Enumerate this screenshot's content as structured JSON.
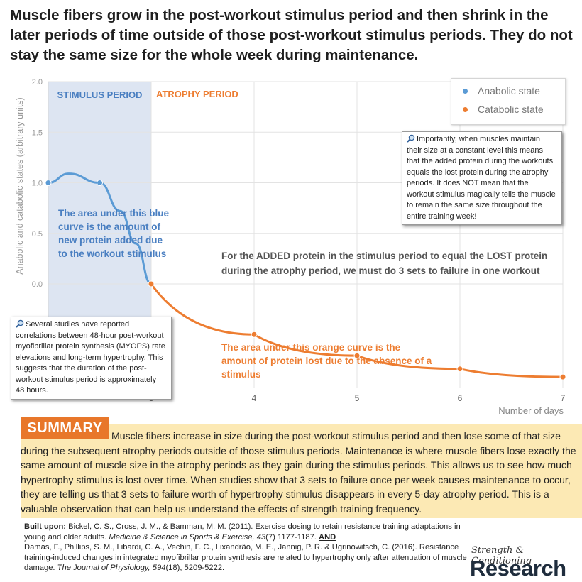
{
  "headline": "Muscle fibers grow in the post-workout stimulus period and then shrink in the later periods of time outside of those post-workout stimulus periods. They do not stay the same size for the whole week during maintenance.",
  "colors": {
    "anabolic": "#5b9bd5",
    "catabolic": "#ed7d31",
    "stimulus_fill": "#dde5f2",
    "summary_bg": "#fce9b4",
    "summary_label": "#e8772a"
  },
  "chart_data": {
    "type": "line",
    "xlabel": "Number of days",
    "ylabel": "Anabolic and catabolic states (arbitrary units)",
    "xlim": [
      2,
      7
    ],
    "ylim": [
      -1.5,
      2.0
    ],
    "x_ticks": [
      "3",
      "4",
      "5",
      "6",
      "7"
    ],
    "y_ticks": [
      "2.0",
      "1.5",
      "1.0",
      "0.5",
      "0.0"
    ],
    "grid": true,
    "legend_position": "top-right",
    "series": [
      {
        "name": "Anabolic state",
        "color": "#5b9bd5",
        "x": [
          2.0,
          2.5,
          3.0
        ],
        "y": [
          1.0,
          1.0,
          0.0
        ],
        "curve": [
          [
            2.0,
            1.0
          ],
          [
            2.2,
            1.09
          ],
          [
            2.5,
            1.0
          ],
          [
            2.7,
            0.72
          ],
          [
            2.85,
            0.4
          ],
          [
            3.0,
            0.0
          ]
        ]
      },
      {
        "name": "Catabolic state",
        "color": "#ed7d31",
        "x": [
          3,
          4,
          5,
          6,
          7
        ],
        "y": [
          0.0,
          -0.5,
          -0.71,
          -0.84,
          -0.92
        ]
      }
    ],
    "regions": [
      {
        "label": "STIMULUS PERIOD",
        "x_start": 2,
        "x_end": 3
      },
      {
        "label": "ATROPHY PERIOD",
        "x_start": 3,
        "x_end": 7
      }
    ],
    "annotations": {
      "blue_area": "The area under this blue curve is the amount of new protein added due to the workout stimulus",
      "orange_area": "The area under this orange curve is the amount of protein lost due to the absence of a stimulus",
      "equality": "For the ADDED protein in the stimulus period to equal the LOST protein during the atrophy period, we must do 3 sets to failure in one workout"
    }
  },
  "callouts": {
    "right": "Importantly, when muscles maintain their size at a constant level this means that the added protein during the workouts equals the lost protein during the atrophy periods. It does NOT mean that the workout stimulus magically tells the muscle to remain the same size throughout the entire training week!",
    "left": "Several studies have reported correlations between 48-hour post-workout myofibrillar protein synthesis (MYOPS) rate elevations and long-term hypertrophy. This suggests that the duration of the post-workout stimulus period is approximately 48 hours."
  },
  "summary": {
    "label": "SUMMARY",
    "text": "Muscle fibers increase in size during the post-workout stimulus period and then lose some of that size during the subsequent atrophy periods outside of those stimulus periods. Maintenance is where muscle fibers lose exactly the same amount of muscle size in the atrophy periods as they gain during the stimulus periods. This allows us to see how much hypertrophy stimulus is lost over time. When studies show that 3 sets to failure once per week causes maintenance to occur, they are telling us that 3 sets to failure worth of hypertrophy stimulus disappears in every 5-day atrophy period. This is a valuable observation that can help us understand the effects of strength training frequency."
  },
  "references": {
    "built_upon": "Built upon:",
    "ref1_plain": "Bickel, C. S., Cross, J. M., & Bamman, M. M. (2011). Exercise dosing to retain resistance training adaptations in young and older adults.",
    "ref1_journal": "Medicine & Science in Sports & Exercise, 43",
    "ref1_tail": "(7) 1177-1187.",
    "and": "AND",
    "ref2_plain": "Damas, F., Phillips, S. M., Libardi, C. A., Vechin, F. C., Lixandrão, M. E., Jannig, P. R. & Ugrinowitsch, C. (2016). Resistance training-induced changes in integrated myofibrillar protein synthesis are related to hypertrophy only after attenuation of muscle damage.",
    "ref2_journal": "The Journal of Physiology, 594",
    "ref2_tail": "(18), 5209-5222."
  },
  "logo": {
    "top": "Strength & Conditioning",
    "bottom": "Research"
  }
}
